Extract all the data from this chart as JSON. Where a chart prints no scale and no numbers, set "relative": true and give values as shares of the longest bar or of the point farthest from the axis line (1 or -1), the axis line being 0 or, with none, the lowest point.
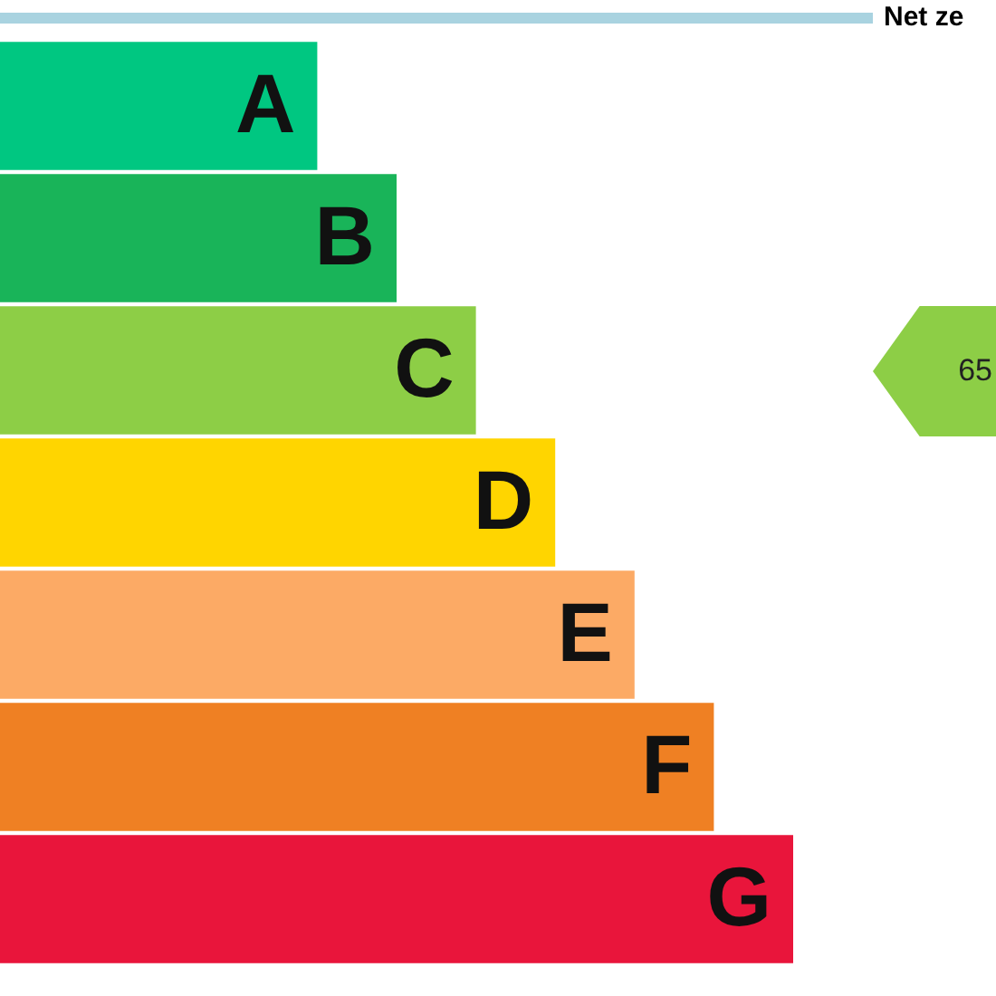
{
  "chart_data": {
    "type": "bar",
    "orientation": "horizontal",
    "relative": true,
    "categories": [
      "A",
      "B",
      "C",
      "D",
      "E",
      "F",
      "G"
    ],
    "values": [
      0.4,
      0.5,
      0.6,
      0.7,
      0.8,
      0.9,
      1
    ],
    "colors": [
      "#00c781",
      "#19b459",
      "#8dce46",
      "#ffd500",
      "#fcaa65",
      "#ef8023",
      "#e9153b"
    ],
    "annotations": [
      "Net ze",
      "65"
    ],
    "legend": false
  }
}
